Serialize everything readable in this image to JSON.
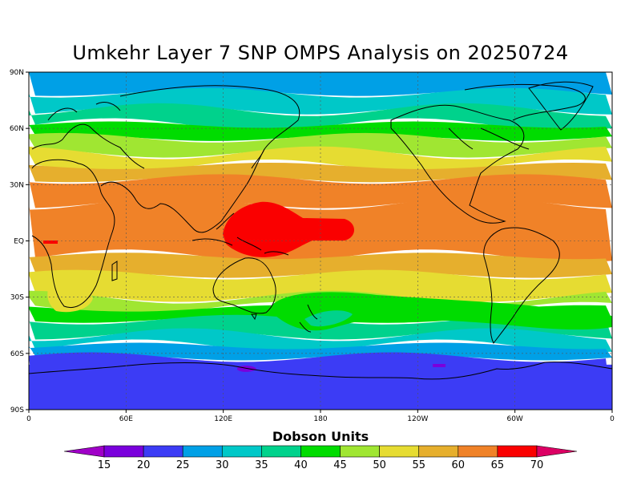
{
  "title": "Umkehr Layer 7 SNP OMPS Analysis on 20250724",
  "lat_ticks": [
    "90N",
    "60N",
    "30N",
    "EQ",
    "30S",
    "60S",
    "90S"
  ],
  "lon_ticks": [
    "0",
    "60E",
    "120E",
    "180",
    "120W",
    "60W",
    "0"
  ],
  "colorbar": {
    "title": "Dobson Units",
    "labels": [
      "15",
      "20",
      "25",
      "30",
      "35",
      "40",
      "45",
      "50",
      "55",
      "60",
      "65",
      "70"
    ],
    "colors": [
      "#a000c8",
      "#7a00dc",
      "#3c3cf5",
      "#00a0e6",
      "#00c8c8",
      "#00d28c",
      "#00dc00",
      "#a0e632",
      "#e6dc32",
      "#e6af2d",
      "#f08228",
      "#fa0000",
      "#dc0064"
    ]
  },
  "map": {
    "lon_range": [
      0,
      360
    ],
    "lat_range": [
      -90,
      90
    ],
    "band_lat_edges": [
      90,
      79,
      70,
      62,
      55,
      47,
      40,
      33,
      20,
      -8,
      -18,
      -30,
      -36,
      -42,
      -50,
      -56,
      -62,
      -90
    ],
    "band_colors": [
      "#00a0e6",
      "#00c8c8",
      "#00d28c",
      "#00dc00",
      "#a0e632",
      "#e6dc32",
      "#e6af2d",
      "#f08228",
      "#f08228",
      "#e6af2d",
      "#e6dc32",
      "#a0e632",
      "#00dc00",
      "#00d28c",
      "#00c8c8",
      "#00a0e6",
      "#3c3cf5"
    ]
  }
}
